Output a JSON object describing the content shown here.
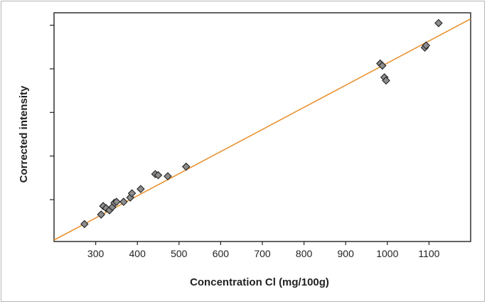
{
  "chart_data": {
    "type": "scatter",
    "title": "",
    "xlabel": "Concentration Cl (mg/100g)",
    "ylabel": "Corrected intensity",
    "xlim": [
      200,
      1200
    ],
    "ylim": [
      0,
      1
    ],
    "x_ticks": [
      300,
      400,
      500,
      600,
      700,
      800,
      900,
      1000,
      1100
    ],
    "y_tick_values": [
      0.17,
      0.375,
      0.58,
      0.785,
      0.99
    ],
    "y_tick_labels_shown": false,
    "grid": false,
    "legend": "none",
    "series": [
      {
        "marker": "diamond",
        "color": "#8c8c8c",
        "x": [
          273,
          313,
          318,
          325,
          333,
          340,
          345,
          350,
          367,
          383,
          387,
          408,
          443,
          450,
          473,
          517,
          983,
          988,
          993,
          997,
          1090,
          1093,
          1123
        ],
        "y": [
          0.055,
          0.1,
          0.14,
          0.13,
          0.12,
          0.135,
          0.155,
          0.16,
          0.16,
          0.18,
          0.2,
          0.22,
          0.29,
          0.285,
          0.28,
          0.325,
          0.81,
          0.8,
          0.745,
          0.73,
          0.885,
          0.895,
          1.0
        ]
      }
    ],
    "fit_line": {
      "color": "#e8912e",
      "x": [
        200,
        1200
      ],
      "y": [
        -0.02,
        1.02
      ]
    }
  }
}
